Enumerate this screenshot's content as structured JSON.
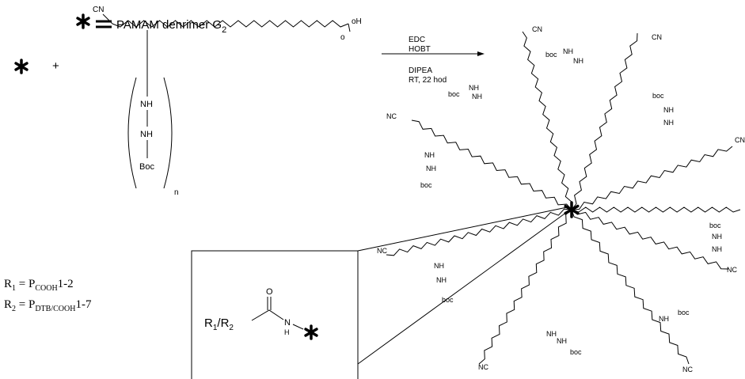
{
  "legend": {
    "label": "PAMAM denrimer G",
    "subscript": "2"
  },
  "reactant": {
    "plus": "+",
    "cn": "CN",
    "oh": "oH",
    "o": "o",
    "nh_1": "NH",
    "nh_2": "NH",
    "boc": "Boc",
    "n": "n"
  },
  "conditions": [
    "EDC",
    "HOBT",
    "DIPEA",
    "RT, 22 hod"
  ],
  "product_labels": [
    "CN",
    "CN",
    "boc",
    "NH",
    "NH",
    "boc",
    "NH",
    "NH",
    "NC",
    "NH",
    "NH",
    "boc",
    "boc",
    "NH",
    "NH",
    "CN",
    "boc",
    "NH",
    "NH",
    "NC",
    "NC",
    "NH",
    "NH",
    "boc",
    "boc",
    "NH",
    "NC",
    "NH",
    "NH",
    "boc",
    "NC"
  ],
  "inset": {
    "r": "R",
    "r1_sub": "1",
    "slash": "/R",
    "r2_sub": "2",
    "o": "O",
    "n": "N",
    "h": "H"
  },
  "definitions": [
    {
      "r": "R",
      "r_sub": "1",
      "eq": " = P",
      "p_sub": "COOH",
      "suffix": "1-2"
    },
    {
      "r": "R",
      "r_sub": "2",
      "eq": " = P",
      "p_sub": "DTB/COOH",
      "suffix": "1-7"
    }
  ]
}
